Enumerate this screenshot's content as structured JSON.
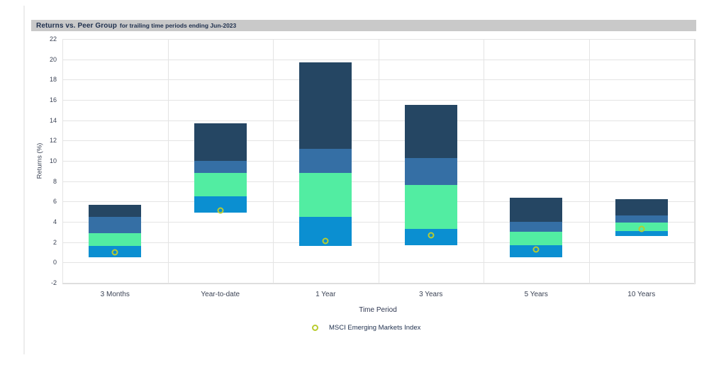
{
  "header": {
    "title": "Returns vs. Peer Group",
    "subtitle": "for trailing time periods ending Jun-2023",
    "bg_color": "#c9c9c9",
    "text_color": "#1e2f4d"
  },
  "chart_data": {
    "type": "bar",
    "subtype": "floating-stacked-peer-percentile",
    "title": "Returns vs. Peer Group for trailing time periods ending Jun-2023",
    "xlabel": "Time Period",
    "ylabel": "Returns (%)",
    "ylim": [
      -2,
      22
    ],
    "yticks": [
      22,
      20,
      18,
      16,
      14,
      12,
      10,
      8,
      6,
      4,
      2,
      0,
      -2
    ],
    "grid": true,
    "categories": [
      "3 Months",
      "Year-to-date",
      "1 Year",
      "3 Years",
      "5 Years",
      "10 Years"
    ],
    "segment_colors": [
      "#254663",
      "#356fa5",
      "#52eda2",
      "#0b8fd1"
    ],
    "bars": [
      {
        "category": "3 Months",
        "boundaries": [
          5.7,
          4.5,
          2.9,
          1.6,
          0.5
        ]
      },
      {
        "category": "Year-to-date",
        "boundaries": [
          13.7,
          10.0,
          8.8,
          6.5,
          4.9
        ]
      },
      {
        "category": "1 Year",
        "boundaries": [
          19.7,
          11.2,
          8.8,
          4.5,
          1.6
        ]
      },
      {
        "category": "3 Years",
        "boundaries": [
          15.5,
          10.3,
          7.6,
          3.3,
          1.7
        ]
      },
      {
        "category": "5 Years",
        "boundaries": [
          6.4,
          4.0,
          3.0,
          1.7,
          0.5
        ]
      },
      {
        "category": "10 Years",
        "boundaries": [
          6.2,
          4.6,
          3.9,
          3.1,
          2.6
        ]
      }
    ],
    "overlay_series": {
      "name": "MSCI Emerging Markets Index",
      "marker": "open-circle",
      "marker_color": "#b9cc2f",
      "values": [
        1.0,
        5.1,
        2.1,
        2.7,
        1.3,
        3.3
      ]
    },
    "legend": {
      "position": "bottom",
      "entries": [
        {
          "label": "MSCI Emerging Markets Index",
          "marker": "open-circle",
          "marker_color": "#b9cc2f"
        }
      ]
    },
    "colors": {
      "gridline": "#e4e4e4",
      "plot_border": "#d9d9d9",
      "tick_text": "#3a4254"
    }
  }
}
